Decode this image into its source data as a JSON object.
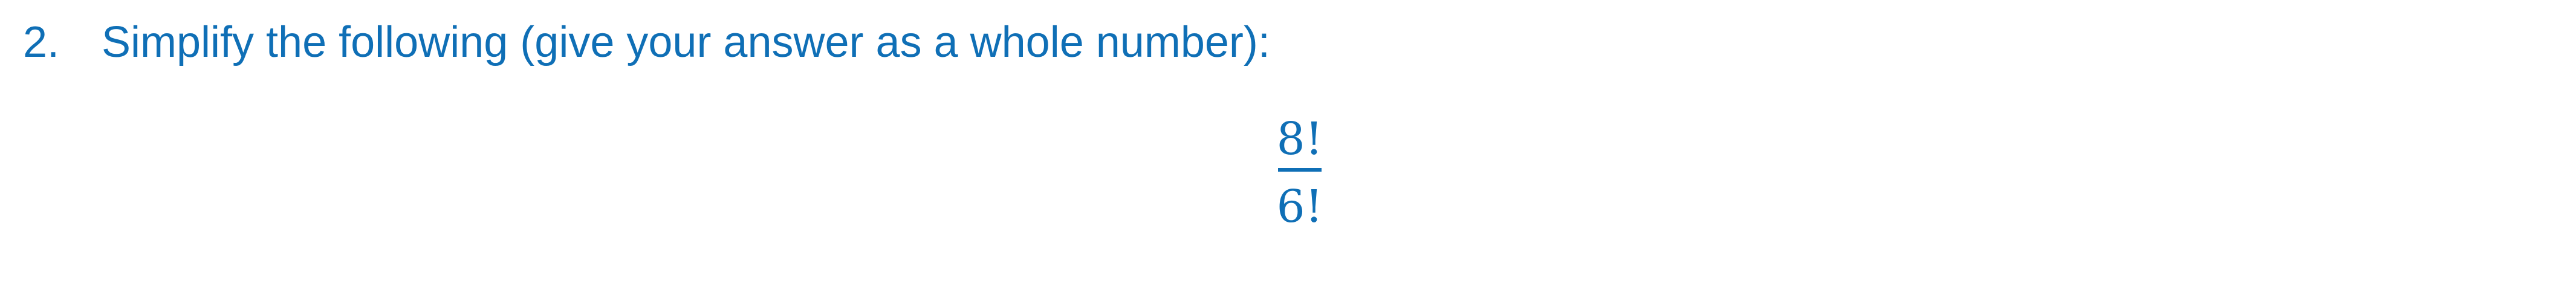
{
  "question": {
    "number": "2.",
    "text": "Simplify the following (give your answer as a whole number):"
  },
  "expression": {
    "numerator": "8!",
    "denominator": "6!"
  }
}
